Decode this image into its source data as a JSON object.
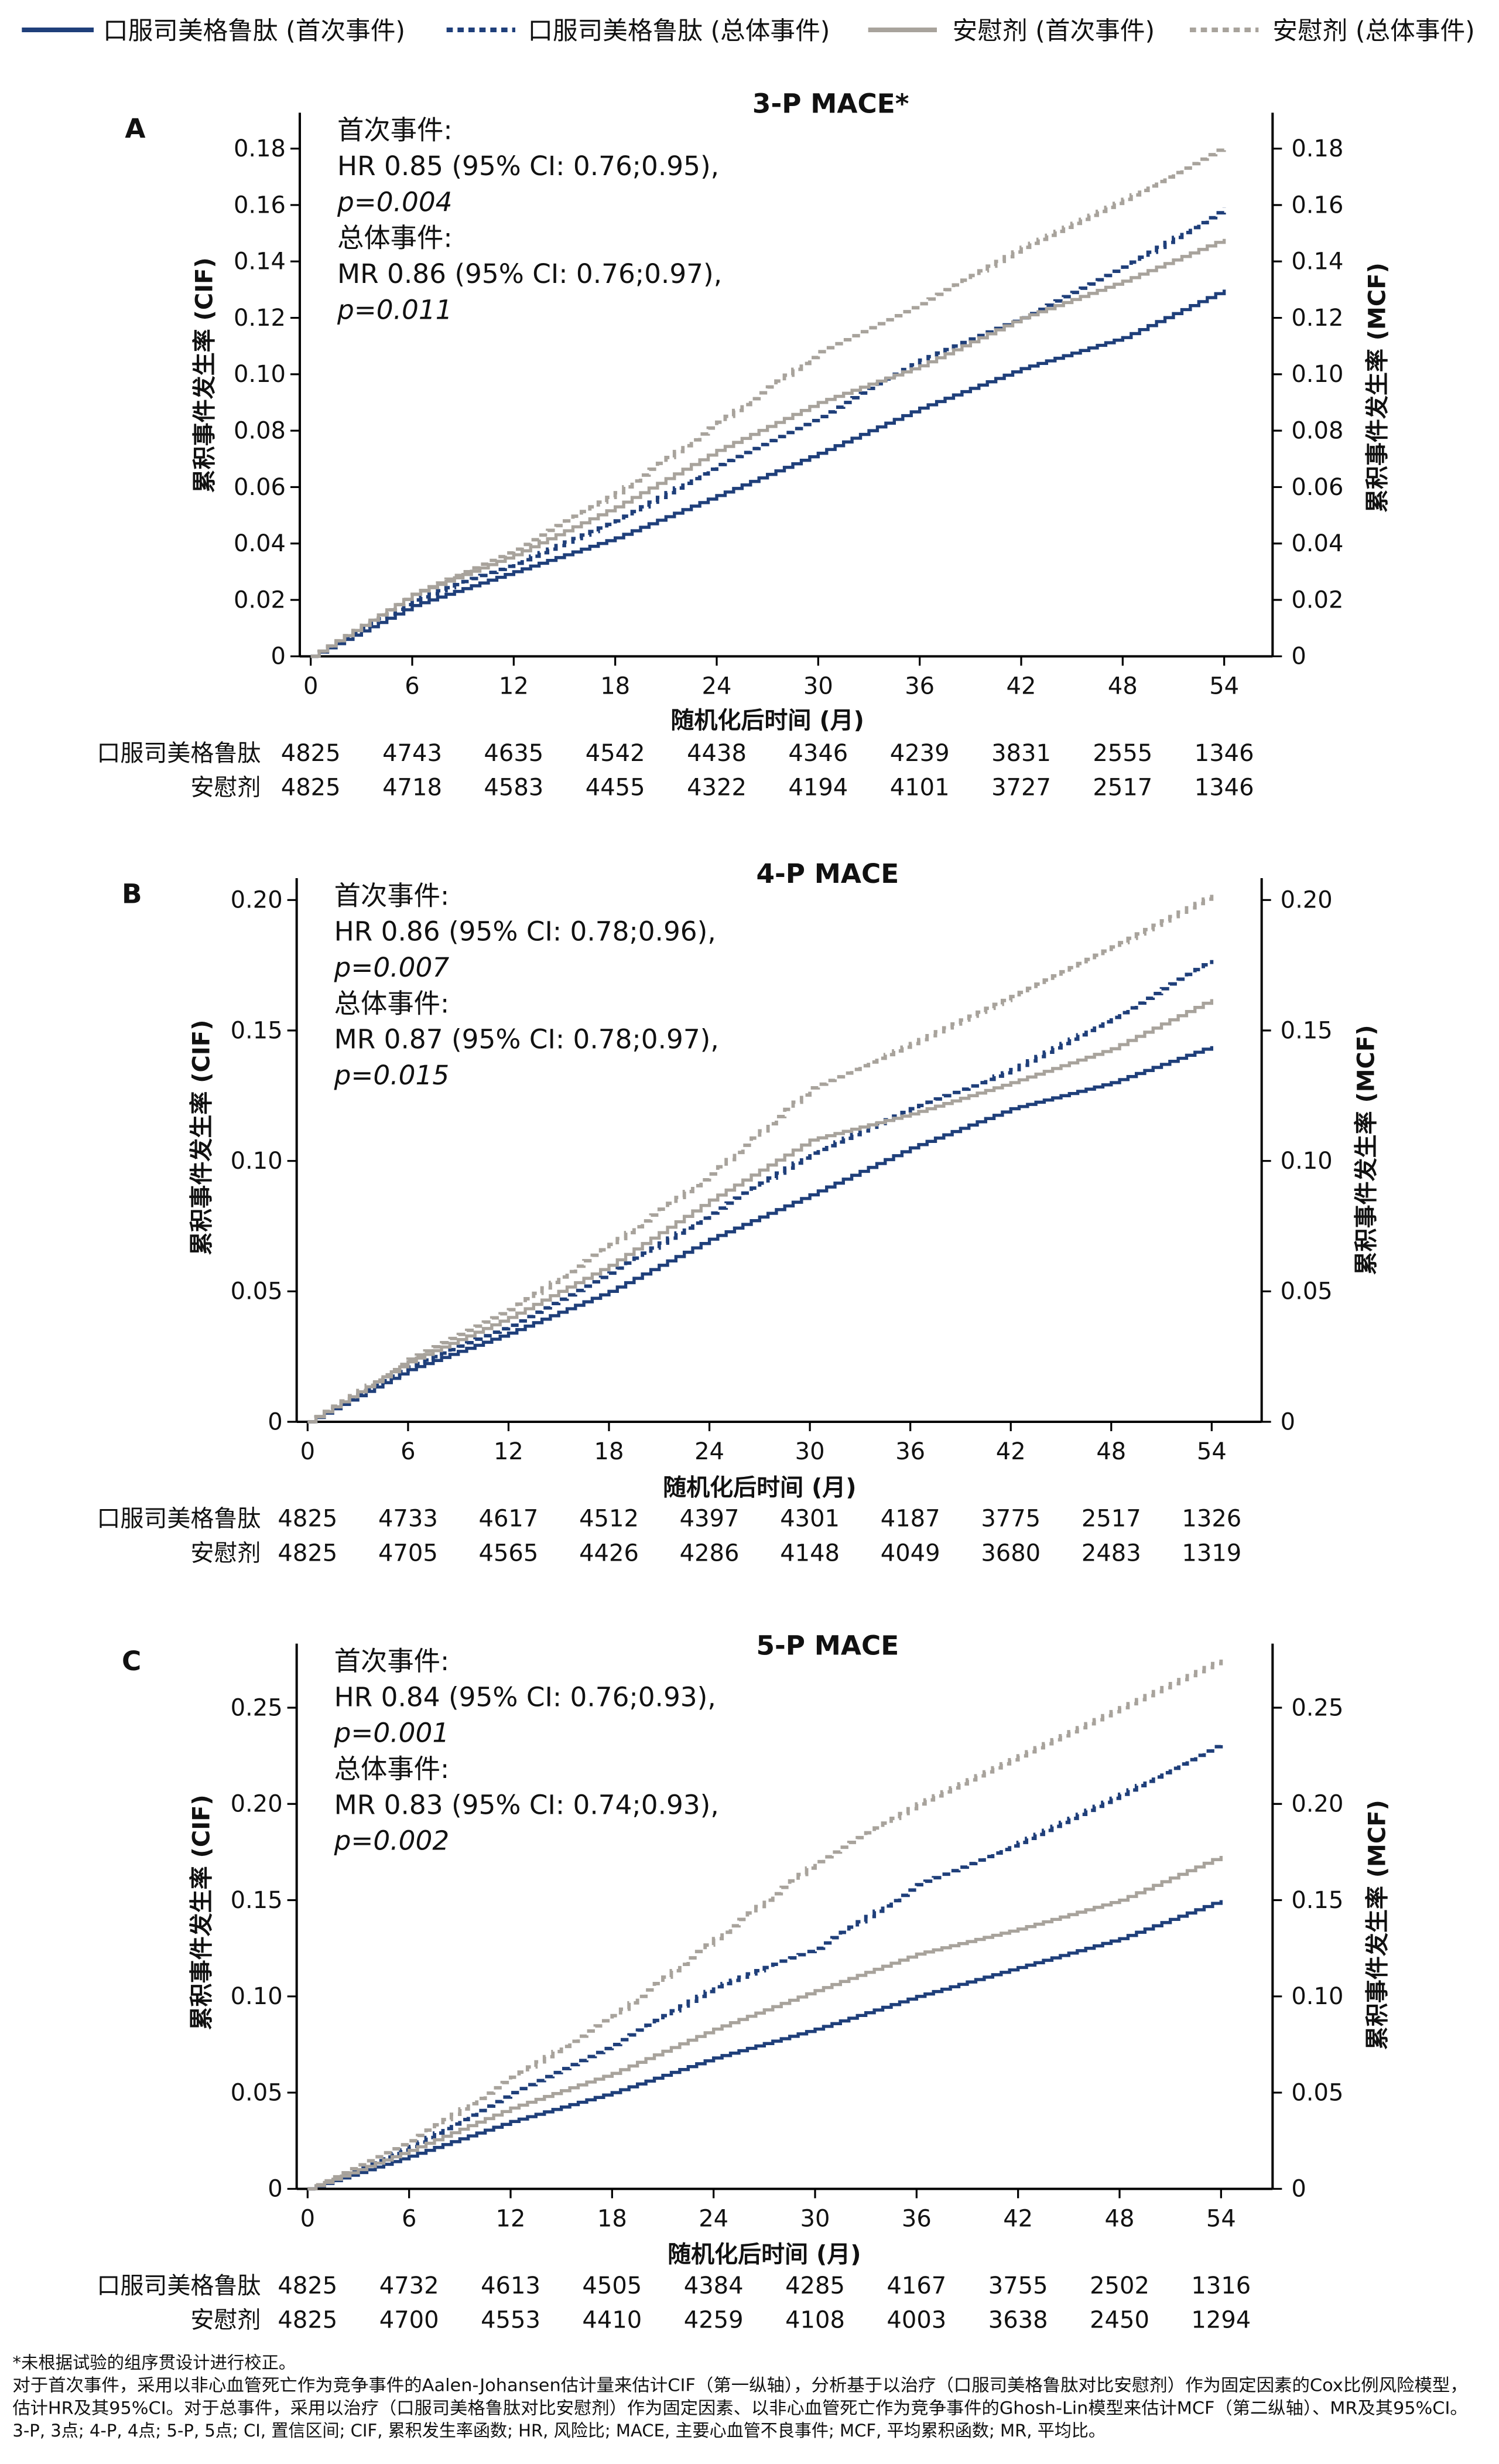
{
  "colors": {
    "semaglutide": "#1f3f7a",
    "placebo": "#a8a39c"
  },
  "legend": [
    {
      "label": "口服司美格鲁肽 (首次事件)",
      "color": "#1f3f7a",
      "dashed": false
    },
    {
      "label": "口服司美格鲁肽 (总体事件)",
      "color": "#1f3f7a",
      "dashed": true
    },
    {
      "label": "安慰剂 (首次事件)",
      "color": "#a8a39c",
      "dashed": false
    },
    {
      "label": "安慰剂 (总体事件)",
      "color": "#a8a39c",
      "dashed": true
    }
  ],
  "chart_data": [
    {
      "type": "line",
      "panel": "A",
      "title": "3-P MACE*",
      "xlabel": "随机化后时间 (月)",
      "ylabel_left": "累积事件发生率 (CIF)",
      "ylabel_right": "累积事件发生率 (MCF)",
      "xlim": [
        0,
        54
      ],
      "xticks": [
        0,
        6,
        12,
        18,
        24,
        30,
        36,
        42,
        48,
        54
      ],
      "ylim": [
        0,
        0.18
      ],
      "yticks": [
        "0",
        "0.02",
        "0.04",
        "0.06",
        "0.08",
        "0.10",
        "0.12",
        "0.14",
        "0.16",
        "0.18"
      ],
      "annotation": [
        "首次事件:",
        "HR 0.85 (95% CI: 0.76;0.95),",
        "p=0.004",
        "总体事件:",
        "MR 0.86 (95% CI: 0.76;0.97),",
        "p=0.011"
      ],
      "x": [
        0,
        6,
        12,
        18,
        24,
        30,
        36,
        42,
        48,
        54
      ],
      "series": [
        {
          "name": "口服司美格鲁肽 (首次事件)",
          "values": [
            0,
            0.018,
            0.03,
            0.042,
            0.057,
            0.072,
            0.088,
            0.102,
            0.113,
            0.13
          ]
        },
        {
          "name": "口服司美格鲁肽 (总体事件)",
          "values": [
            0,
            0.02,
            0.033,
            0.048,
            0.068,
            0.085,
            0.105,
            0.12,
            0.138,
            0.159
          ]
        },
        {
          "name": "安慰剂 (首次事件)",
          "values": [
            0,
            0.022,
            0.036,
            0.053,
            0.073,
            0.09,
            0.103,
            0.12,
            0.133,
            0.148
          ]
        },
        {
          "name": "安慰剂 (总体事件)",
          "values": [
            0,
            0.022,
            0.038,
            0.058,
            0.083,
            0.108,
            0.125,
            0.145,
            0.162,
            0.181
          ]
        }
      ],
      "at_risk": [
        {
          "label": "口服司美格鲁肽",
          "values": [
            "4825",
            "4743",
            "4635",
            "4542",
            "4438",
            "4346",
            "4239",
            "3831",
            "2555",
            "1346"
          ]
        },
        {
          "label": "安慰剂",
          "values": [
            "4825",
            "4718",
            "4583",
            "4455",
            "4322",
            "4194",
            "4101",
            "3727",
            "2517",
            "1346"
          ]
        }
      ]
    },
    {
      "type": "line",
      "panel": "B",
      "title": "4-P MACE",
      "xlabel": "随机化后时间 (月)",
      "ylabel_left": "累积事件发生率 (CIF)",
      "ylabel_right": "累积事件发生率 (MCF)",
      "xlim": [
        0,
        54
      ],
      "xticks": [
        0,
        6,
        12,
        18,
        24,
        30,
        36,
        42,
        48,
        54
      ],
      "ylim": [
        0,
        0.2
      ],
      "yticks": [
        "0",
        "0.05",
        "0.10",
        "0.15",
        "0.20"
      ],
      "annotation": [
        "首次事件:",
        "HR 0.86 (95% CI: 0.78;0.96),",
        "p=0.007",
        "总体事件:",
        "MR 0.87 (95% CI: 0.78;0.97),",
        "p=0.015"
      ],
      "x": [
        0,
        6,
        12,
        18,
        24,
        30,
        36,
        42,
        48,
        54
      ],
      "series": [
        {
          "name": "口服司美格鲁肽 (首次事件)",
          "values": [
            0,
            0.02,
            0.034,
            0.05,
            0.07,
            0.087,
            0.105,
            0.12,
            0.13,
            0.144
          ]
        },
        {
          "name": "口服司美格鲁肽 (总体事件)",
          "values": [
            0,
            0.021,
            0.037,
            0.057,
            0.08,
            0.103,
            0.12,
            0.135,
            0.155,
            0.177
          ]
        },
        {
          "name": "安慰剂 (首次事件)",
          "values": [
            0,
            0.023,
            0.04,
            0.06,
            0.085,
            0.108,
            0.118,
            0.13,
            0.143,
            0.162
          ]
        },
        {
          "name": "安慰剂 (总体事件)",
          "values": [
            0,
            0.024,
            0.043,
            0.068,
            0.095,
            0.128,
            0.145,
            0.163,
            0.182,
            0.202
          ]
        }
      ],
      "at_risk": [
        {
          "label": "口服司美格鲁肽",
          "values": [
            "4825",
            "4733",
            "4617",
            "4512",
            "4397",
            "4301",
            "4187",
            "3775",
            "2517",
            "1326"
          ]
        },
        {
          "label": "安慰剂",
          "values": [
            "4825",
            "4705",
            "4565",
            "4426",
            "4286",
            "4148",
            "4049",
            "3680",
            "2483",
            "1319"
          ]
        }
      ]
    },
    {
      "type": "line",
      "panel": "C",
      "title": "5-P MACE",
      "xlabel": "随机化后时间 (月)",
      "ylabel_left": "累积事件发生率 (CIF)",
      "ylabel_right": "累积事件发生率 (MCF)",
      "xlim": [
        0,
        54
      ],
      "xticks": [
        0,
        6,
        12,
        18,
        24,
        30,
        36,
        42,
        48,
        54
      ],
      "ylim": [
        0,
        0.25
      ],
      "yticks": [
        "0",
        "0.05",
        "0.10",
        "0.15",
        "0.20",
        "0.25"
      ],
      "annotation": [
        "首次事件:",
        "HR 0.84 (95% CI: 0.76;0.93),",
        "p=0.001",
        "总体事件:",
        "MR 0.83 (95% CI: 0.74;0.93),",
        "p=0.002"
      ],
      "x": [
        0,
        6,
        12,
        18,
        24,
        30,
        36,
        42,
        48,
        54
      ],
      "series": [
        {
          "name": "口服司美格鲁肽 (首次事件)",
          "values": [
            0,
            0.017,
            0.035,
            0.05,
            0.068,
            0.083,
            0.1,
            0.115,
            0.13,
            0.15
          ]
        },
        {
          "name": "口服司美格鲁肽 (总体事件)",
          "values": [
            0,
            0.022,
            0.05,
            0.075,
            0.105,
            0.125,
            0.158,
            0.18,
            0.205,
            0.232
          ]
        },
        {
          "name": "安慰剂 (首次事件)",
          "values": [
            0,
            0.02,
            0.042,
            0.06,
            0.083,
            0.103,
            0.122,
            0.135,
            0.15,
            0.173
          ]
        },
        {
          "name": "安慰剂 (总体事件)",
          "values": [
            0,
            0.025,
            0.058,
            0.09,
            0.13,
            0.17,
            0.2,
            0.225,
            0.25,
            0.275
          ]
        }
      ],
      "at_risk": [
        {
          "label": "口服司美格鲁肽",
          "values": [
            "4825",
            "4732",
            "4613",
            "4505",
            "4384",
            "4285",
            "4167",
            "3755",
            "2502",
            "1316"
          ]
        },
        {
          "label": "安慰剂",
          "values": [
            "4825",
            "4700",
            "4553",
            "4410",
            "4259",
            "4108",
            "4003",
            "3638",
            "2450",
            "1294"
          ]
        }
      ]
    }
  ],
  "footnotes": [
    "*未根据试验的组序贯设计进行校正。",
    "对于首次事件，采用以非心血管死亡作为竞争事件的Aalen-Johansen估计量来估计CIF（第一纵轴），分析基于以治疗（口服司美格鲁肽对比安慰剂）作为固定因素的Cox比例风险模型，",
    "估计HR及其95%CI。对于总事件，采用以治疗（口服司美格鲁肽对比安慰剂）作为固定因素、以非心血管死亡作为竞争事件的Ghosh-Lin模型来估计MCF（第二纵轴）、MR及其95%CI。",
    "3-P, 3点; 4-P, 4点; 5-P, 5点; CI, 置信区间; CIF, 累积发生率函数; HR, 风险比; MACE, 主要心血管不良事件; MCF, 平均累积函数; MR, 平均比。"
  ]
}
